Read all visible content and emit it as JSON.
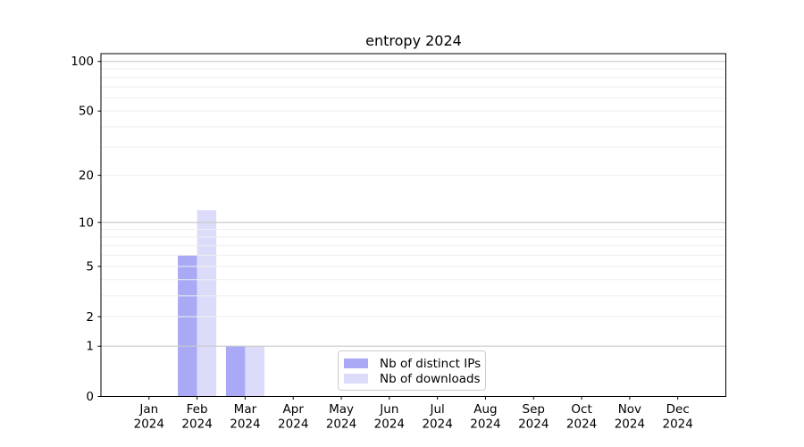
{
  "title": "entropy 2024",
  "colors": {
    "distinct_ips": "#a9a9f6",
    "downloads": "#dcdcfa",
    "grid_major": "#c9c9c9",
    "grid_minor": "#efefef",
    "axis": "#000000",
    "text": "#000000",
    "legend_border": "#cccccc",
    "background": "#ffffff"
  },
  "legend": {
    "items": [
      {
        "label": "Nb of distinct IPs",
        "color_key": "distinct_ips"
      },
      {
        "label": "Nb of downloads",
        "color_key": "downloads"
      }
    ]
  },
  "chart_data": {
    "type": "bar",
    "title": "entropy 2024",
    "categories": [
      "Jan",
      "Feb",
      "Mar",
      "Apr",
      "May",
      "Jun",
      "Jul",
      "Aug",
      "Sep",
      "Oct",
      "Nov",
      "Dec"
    ],
    "year_label": "2024",
    "series": [
      {
        "name": "Nb of distinct IPs",
        "values": [
          0,
          6,
          1,
          0,
          0,
          0,
          0,
          0,
          0,
          0,
          0,
          0
        ]
      },
      {
        "name": "Nb of downloads",
        "values": [
          0,
          12,
          1,
          0,
          0,
          0,
          0,
          0,
          0,
          0,
          0,
          0
        ]
      }
    ],
    "yticks": [
      0,
      1,
      2,
      5,
      10,
      20,
      50,
      100
    ],
    "minor_yticks": [
      2,
      3,
      4,
      5,
      6,
      7,
      8,
      9,
      20,
      30,
      40,
      50,
      60,
      70,
      80,
      90
    ],
    "major_gridlines": [
      1,
      10,
      100
    ],
    "scale": "log1p",
    "ylim": [
      0,
      112
    ],
    "grid": "horizontal",
    "legend_position": "lower center",
    "xlabel": "",
    "ylabel": ""
  }
}
